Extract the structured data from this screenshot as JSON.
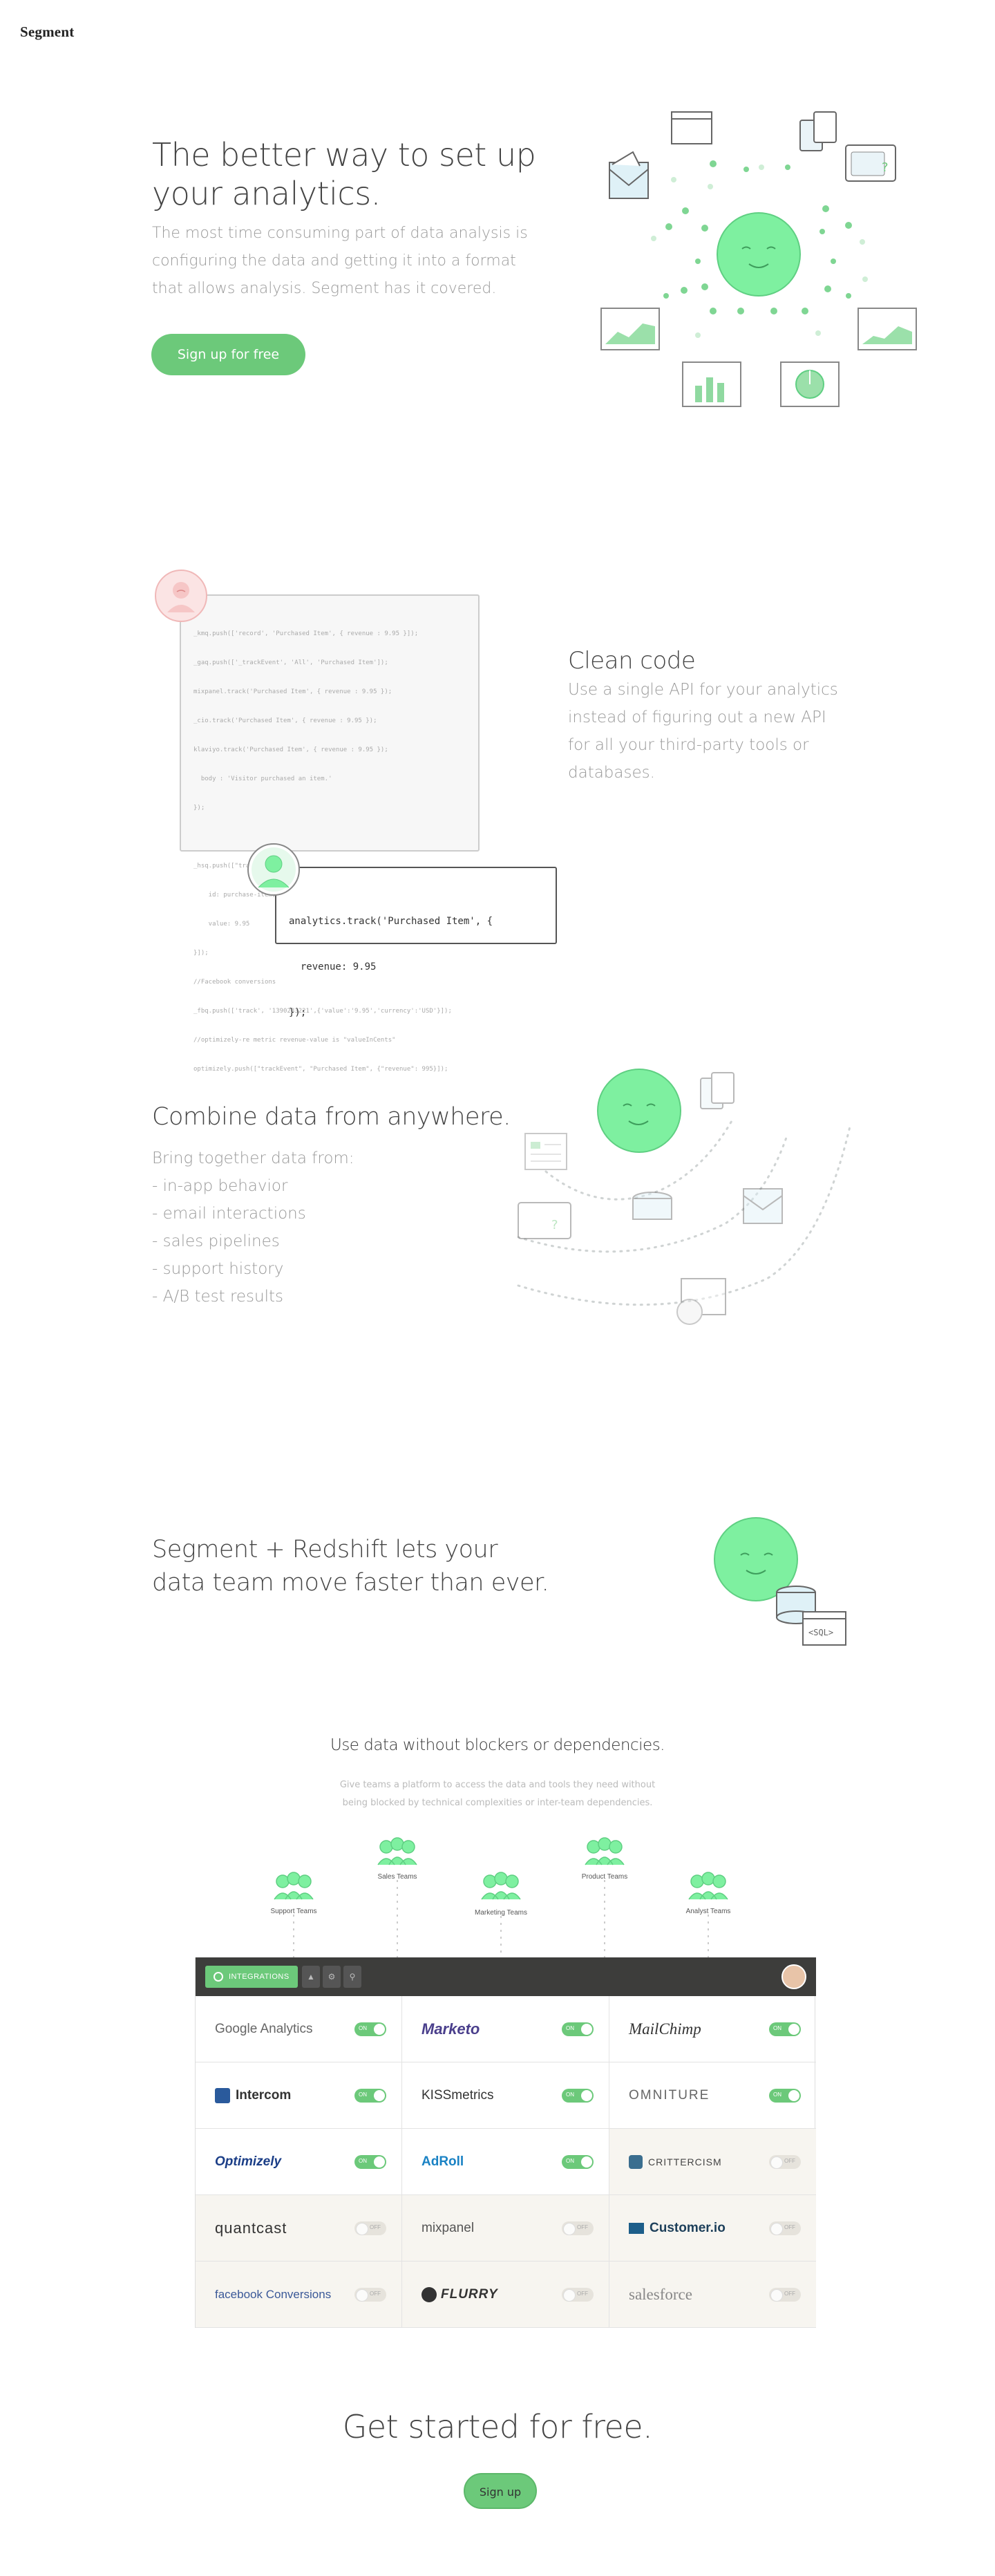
{
  "header": {
    "logo": "Segment"
  },
  "hero": {
    "title_line1": "The better way to set up",
    "title_line2": "your analytics.",
    "desc_line1": "The most time consuming part of data analysis is",
    "desc_line2": "configuring the data and getting it into a format",
    "desc_line3": "that allows analysis. Segment has it covered.",
    "cta": "Sign up for free"
  },
  "clean_code": {
    "title": "Clean code",
    "desc_line1": "Use a single API for your analytics",
    "desc_line2": "instead of figuring out a new API",
    "desc_line3": "for all your third-party tools or",
    "desc_line4": "databases.",
    "messy_lines": [
      "_kmq.push(['record', 'Purchased Item', { revenue : 9.95 }]);",
      "_gaq.push(['_trackEvent', 'All', 'Purchased Item']);",
      "mixpanel.track('Purchased Item', { revenue : 9.95 });",
      "_cio.track('Purchased Item', { revenue : 9.95 });",
      "klaviyo.track('Purchased Item', { revenue : 9.95 });",
      "  body : 'Visitor purchased an item.'",
      "});",
      "",
      "_hsq.push([\"trackEvent\", {",
      "    id: purchase-item,",
      "    value: 9.95",
      "}]);",
      "//Facebook conversions",
      "_fbq.push(['track', '1390283221',{'value':'9.95','currency':'USD'}]);",
      "//optimizely-re metric revenue-value is \"valueInCents\"",
      "optimizely.push([\"trackEvent\", \"Purchased Item\", {\"revenue\": 995}]);"
    ],
    "clean_line1": "analytics.track('Purchased Item', {",
    "clean_line2": "  revenue: 9.95",
    "clean_line3": "});"
  },
  "combine": {
    "title": "Combine data from anywhere.",
    "intro": "Bring together data from:",
    "items": [
      "- in-app behavior",
      "- email interactions",
      "- sales pipelines",
      "- support history",
      "- A/B test results"
    ]
  },
  "redshift": {
    "title_line1": "Segment + Redshift lets your",
    "title_line2": "data team move faster than ever.",
    "sql_label": "<SQL>"
  },
  "teams": {
    "title": "Use data without blockers or dependencies.",
    "desc_line1": "Give teams a platform to access the data and tools they need without",
    "desc_line2": "being blocked by technical complexities or inter-team dependencies.",
    "labels": [
      "Support Teams",
      "Sales Teams",
      "Marketing Teams",
      "Product Teams",
      "Analyst Teams"
    ]
  },
  "integrations": {
    "tab_label": "INTEGRATIONS",
    "on_label": "ON",
    "off_label": "OFF",
    "items": [
      {
        "name": "Google Analytics",
        "on": true
      },
      {
        "name": "Marketo",
        "on": true
      },
      {
        "name": "MailChimp",
        "on": true
      },
      {
        "name": "Intercom",
        "on": true
      },
      {
        "name": "KISSmetrics",
        "on": true
      },
      {
        "name": "OMNITURE",
        "on": true
      },
      {
        "name": "Optimizely",
        "on": true
      },
      {
        "name": "AdRoll",
        "on": true
      },
      {
        "name": "CRITTERCISM",
        "on": false
      },
      {
        "name": "quantcast",
        "on": false
      },
      {
        "name": "mixpanel",
        "on": false
      },
      {
        "name": "Customer.io",
        "on": false
      },
      {
        "name": "facebook Conversions",
        "on": false
      },
      {
        "name": "FLURRY",
        "on": false
      },
      {
        "name": "salesforce",
        "on": false
      }
    ]
  },
  "footer_cta": {
    "title": "Get started for free.",
    "button": "Sign up"
  },
  "colors": {
    "accent": "#6cc97a",
    "face": "#7ef0a0",
    "text": "#444444",
    "muted": "#9a9a9a"
  }
}
